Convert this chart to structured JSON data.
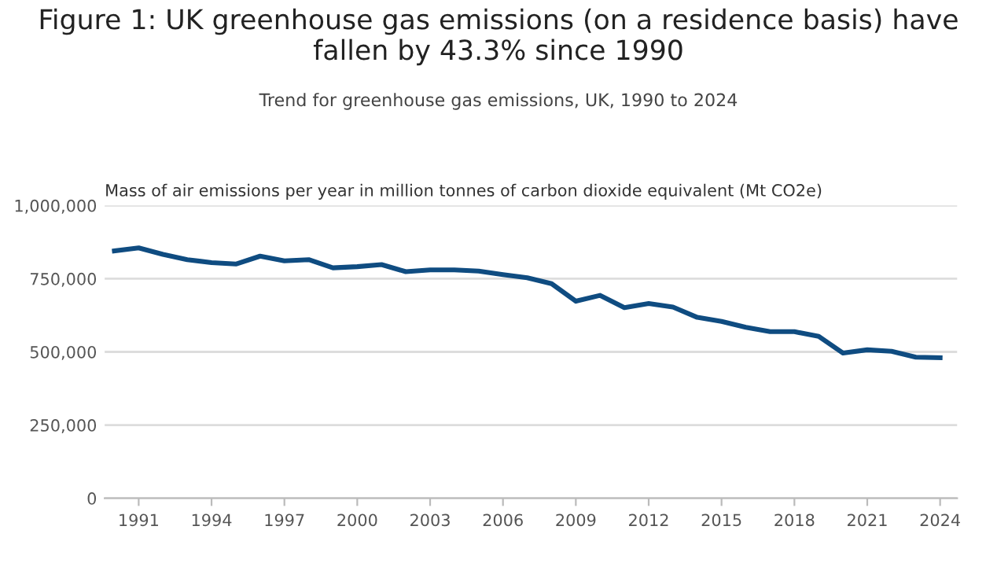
{
  "chart_data": {
    "type": "line",
    "title": "Figure 1: UK greenhouse gas emissions (on a residence basis) have fallen by 43.3% since 1990",
    "subtitle": "Trend for greenhouse gas emissions, UK, 1990 to 2024",
    "ylabel": "Mass of air emissions per year in million tonnes of carbon dioxide equivalent (Mt CO2e)",
    "x": [
      1990,
      1991,
      1992,
      1993,
      1994,
      1995,
      1996,
      1997,
      1998,
      1999,
      2000,
      2001,
      2002,
      2003,
      2004,
      2005,
      2006,
      2007,
      2008,
      2009,
      2010,
      2011,
      2012,
      2013,
      2014,
      2015,
      2016,
      2017,
      2018,
      2019,
      2020,
      2021,
      2022,
      2023,
      2024
    ],
    "series": [
      {
        "color": "#0f4c81",
        "values": [
          845000,
          855000,
          833000,
          815000,
          805000,
          800000,
          827000,
          811000,
          815000,
          787000,
          791000,
          798000,
          774000,
          780000,
          780000,
          776000,
          764000,
          753000,
          733000,
          673000,
          693000,
          651000,
          665000,
          653000,
          618000,
          604000,
          584000,
          569000,
          569000,
          553000,
          496000,
          507000,
          502000,
          482000,
          480000
        ]
      }
    ],
    "xlim": [
      1989.6,
      2024.7
    ],
    "xticks": [
      1991,
      1994,
      1997,
      2000,
      2003,
      2006,
      2009,
      2012,
      2015,
      2018,
      2021,
      2024
    ],
    "ylim": [
      0,
      1000000
    ],
    "yticks": [
      {
        "value": 0,
        "label": "0"
      },
      {
        "value": 250000,
        "label": "250,000"
      },
      {
        "value": 500000,
        "label": "500,000"
      },
      {
        "value": 750000,
        "label": "750,000"
      },
      {
        "value": 1000000,
        "label": "1,000,000"
      }
    ],
    "grid": "y",
    "legend": false,
    "marker": "none",
    "line_style": "solid"
  }
}
